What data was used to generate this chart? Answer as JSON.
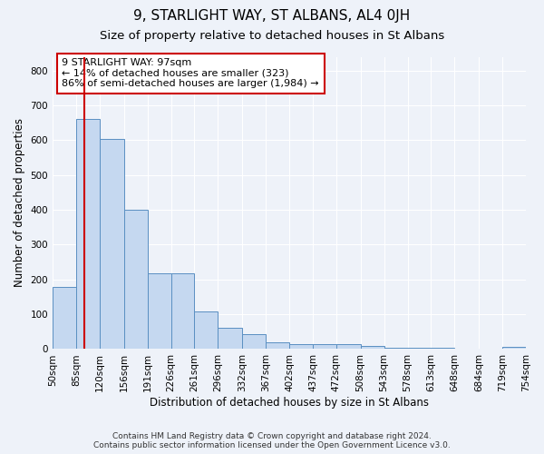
{
  "title": "9, STARLIGHT WAY, ST ALBANS, AL4 0JH",
  "subtitle": "Size of property relative to detached houses in St Albans",
  "xlabel": "Distribution of detached houses by size in St Albans",
  "ylabel": "Number of detached properties",
  "bar_edges": [
    50,
    85,
    120,
    156,
    191,
    226,
    261,
    296,
    332,
    367,
    402,
    437,
    472,
    508,
    543,
    578,
    613,
    648,
    684,
    719,
    754
  ],
  "bar_heights": [
    178,
    660,
    605,
    400,
    218,
    218,
    107,
    62,
    43,
    20,
    15,
    13,
    14,
    8,
    5,
    3,
    3,
    2,
    2,
    7
  ],
  "bar_color": "#c5d8f0",
  "bar_edge_color": "#5a8fc2",
  "property_size": 97,
  "annotation_text": "9 STARLIGHT WAY: 97sqm\n← 14% of detached houses are smaller (323)\n86% of semi-detached houses are larger (1,984) →",
  "annotation_box_color": "#ffffff",
  "annotation_box_edge_color": "#cc0000",
  "vline_color": "#cc0000",
  "ylim": [
    0,
    840
  ],
  "yticks": [
    0,
    100,
    200,
    300,
    400,
    500,
    600,
    700,
    800
  ],
  "footer_line1": "Contains HM Land Registry data © Crown copyright and database right 2024.",
  "footer_line2": "Contains public sector information licensed under the Open Government Licence v3.0.",
  "background_color": "#eef2f9",
  "grid_color": "#ffffff",
  "title_fontsize": 11,
  "subtitle_fontsize": 9.5,
  "tick_label_fontsize": 7.5,
  "axis_label_fontsize": 8.5,
  "footer_fontsize": 6.5
}
